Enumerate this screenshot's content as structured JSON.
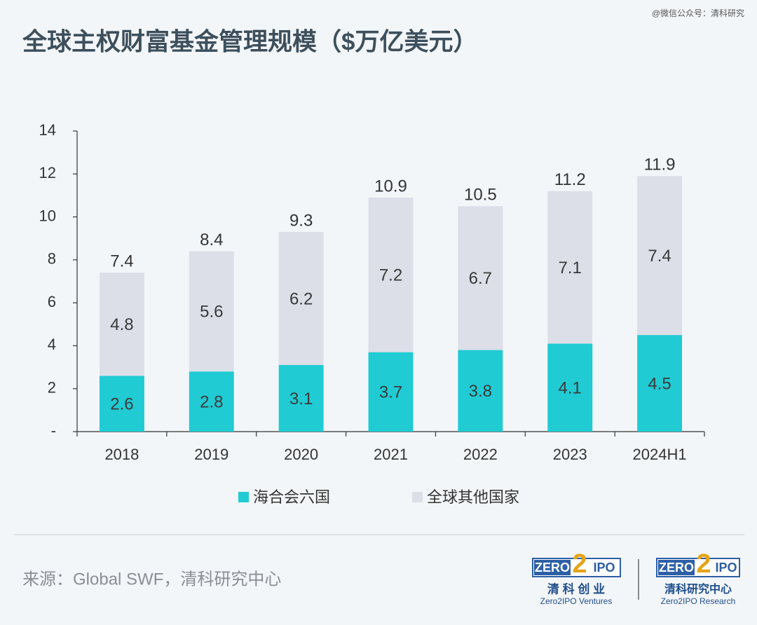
{
  "watermark": "@微信公众号：清科研究",
  "chart_data": {
    "type": "stacked_bar",
    "title": "全球主权财富基金管理规模（$万亿美元）",
    "categories": [
      "2018",
      "2019",
      "2020",
      "2021",
      "2022",
      "2023",
      "2024H1"
    ],
    "series": [
      {
        "name": "海合会六国",
        "color": "#20cbd3",
        "values": [
          2.6,
          2.8,
          3.1,
          3.7,
          3.8,
          4.1,
          4.5
        ]
      },
      {
        "name": "全球其他国家",
        "color": "#dcdfe8",
        "values": [
          4.8,
          5.6,
          6.2,
          7.2,
          6.7,
          7.1,
          7.4
        ]
      }
    ],
    "totals": [
      7.4,
      8.4,
      9.3,
      10.9,
      10.5,
      11.2,
      11.9
    ],
    "ylim": [
      0,
      14
    ],
    "yticks": [
      {
        "value": 0,
        "label": "-"
      },
      2,
      4,
      6,
      8,
      10,
      12,
      14
    ],
    "grid": false,
    "legend": "bottom"
  },
  "source": "来源：Global SWF，清科研究中心",
  "branding": {
    "left": {
      "zero": "ZERO",
      "two": "2",
      "ipo": "IPO",
      "cn": "清 科 创 业",
      "en": "Zero2IPO Ventures"
    },
    "right": {
      "zero": "ZERO",
      "two": "2",
      "ipo": "IPO",
      "cn": "清科研究中心",
      "en": "Zero2IPO Research"
    }
  }
}
